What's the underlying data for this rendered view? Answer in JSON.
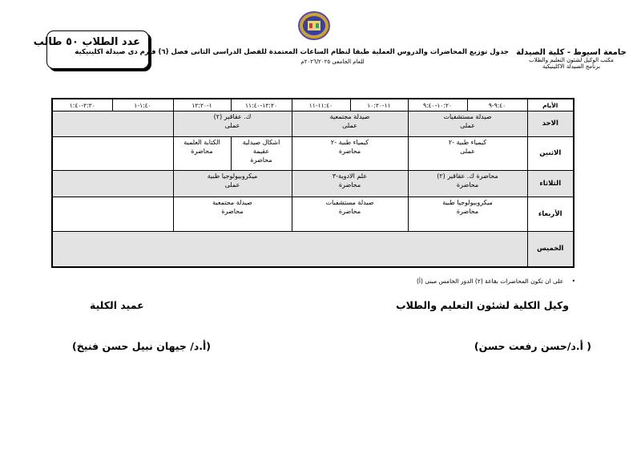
{
  "header": {
    "university": "جامعة اسيوط - كلية الصيدلة",
    "office": "مكتب الوكيل لشئون التعليم والطلاب",
    "program": "برنامج الصيدلة الاكلينيكية",
    "title": "جدول توزيع المحاضرات والدروس العملية طبقا لنظام الساعات المعتمدة للفصل الدراسى الثانى فصل (٦) فارم دى صيدلة اكلينيكية",
    "academic_year": "للعام الجامعى ٢٠٢٦/٢٠٢٥م",
    "student_count": "عدد الطلاب ٥٠  طالب",
    "logo_icon": "faculty-logo"
  },
  "schedule": {
    "days_header": "الأيام",
    "time_slots": [
      "٩:٤٠-٩",
      "١٠:٢٠-٩:٤٠",
      "١١-١٠:٢٠",
      "١١:٤٠-١١",
      "١٢:٢٠-١١:٤٠",
      "١-١٢:٢٠",
      "١:٤٠-١",
      "٢:٢٠-١:٤٠"
    ],
    "rows": [
      {
        "day": "الاحد",
        "shade": "grey",
        "cells": [
          {
            "span": 2,
            "lines": [
              "صيدلة مستشفيات",
              "عملى"
            ]
          },
          {
            "span": 2,
            "lines": [
              "صيدلة مجتمعية",
              "عملى"
            ]
          },
          {
            "span": 2,
            "lines": [
              "ك. عقاقير (٢)",
              "عملى"
            ]
          },
          {
            "span": 2,
            "lines": []
          }
        ]
      },
      {
        "day": "الاثنين",
        "shade": "white",
        "cells": [
          {
            "span": 2,
            "lines": [
              "كيمياء طبية -٢",
              "عملى"
            ]
          },
          {
            "span": 2,
            "lines": [
              "كيمياء طبية -٢",
              "محاضرة"
            ]
          },
          {
            "span": 1,
            "lines": [
              "اشكال صيدلية",
              "عقيمة",
              "محاضرة"
            ]
          },
          {
            "span": 1,
            "lines": [
              "الكتابة العلمية",
              "محاضرة"
            ]
          },
          {
            "span": 2,
            "lines": []
          }
        ]
      },
      {
        "day": "الثلاثاء",
        "shade": "grey",
        "cells": [
          {
            "span": 2,
            "lines": [
              "محاضرة ك. عقاقير (٢)",
              "محاضرة"
            ]
          },
          {
            "span": 2,
            "lines": [
              "علم الادوية-٣",
              "محاضرة"
            ]
          },
          {
            "span": 2,
            "lines": [
              "ميكروبيولوجيا طبية",
              "عملى"
            ]
          },
          {
            "span": 2,
            "lines": []
          }
        ]
      },
      {
        "day": "الأربعاء",
        "shade": "white",
        "cells": [
          {
            "span": 2,
            "lines": [
              "ميكروبيولوجيا طبية",
              "محاضرة"
            ]
          },
          {
            "span": 2,
            "lines": [
              "صيدلة مستشفيات",
              "محاضرة"
            ]
          },
          {
            "span": 2,
            "lines": [
              "صيدلة مجتمعية",
              "محاضرة"
            ]
          },
          {
            "span": 2,
            "lines": []
          }
        ]
      },
      {
        "day": "الخميس",
        "shade": "grey",
        "cells": [
          {
            "span": 8,
            "lines": []
          }
        ]
      }
    ]
  },
  "note": "على ان تكون المحاضرات بقاعة (٢) الدور الخامس مبنى (أ)",
  "signatures": {
    "vice_dean_title": "وكيل الكلية لشئون التعليم والطلاب",
    "vice_dean_name": "( أ.د/حسن رفعت حسن)",
    "dean_title": "عميد الكلية",
    "dean_name": "(أ.د/ جيهان نبيل حسن فنيخ)"
  }
}
